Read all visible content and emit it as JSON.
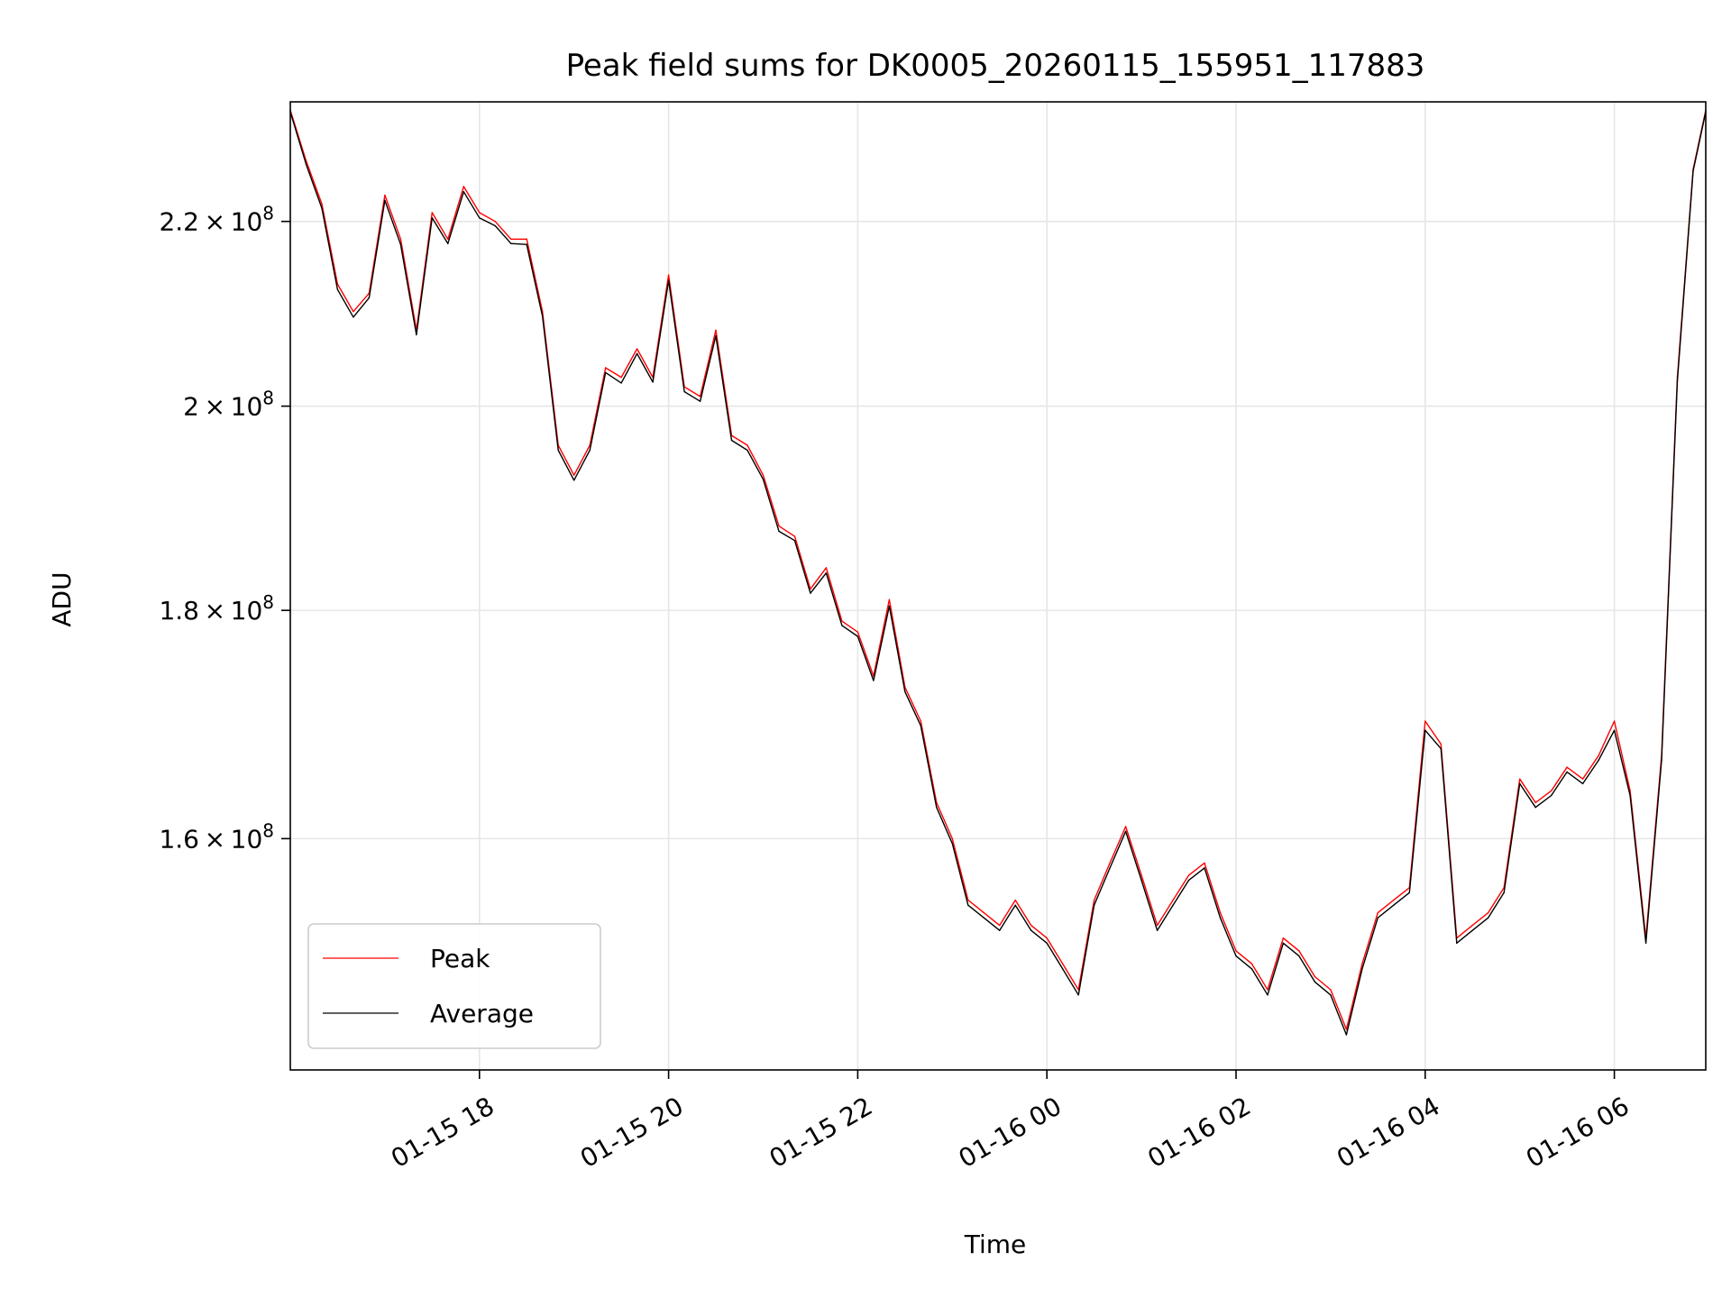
{
  "chart_data": {
    "type": "line",
    "title": "Peak field sums for DK0005_20260115_155951_117883",
    "xlabel": "Time",
    "ylabel": "ADU",
    "y_scale": "log",
    "ylim": [
      142000000,
      234000000
    ],
    "xlim": [
      "2026-01-15 16:00",
      "2026-01-16 06:58"
    ],
    "grid": true,
    "legend_position": "lower-left",
    "x_ticks": [
      {
        "value": "2026-01-15 18:00",
        "label": "01-15 18"
      },
      {
        "value": "2026-01-15 20:00",
        "label": "01-15 20"
      },
      {
        "value": "2026-01-15 22:00",
        "label": "01-15 22"
      },
      {
        "value": "2026-01-16 00:00",
        "label": "01-16 00"
      },
      {
        "value": "2026-01-16 02:00",
        "label": "01-16 02"
      },
      {
        "value": "2026-01-16 04:00",
        "label": "01-16 04"
      },
      {
        "value": "2026-01-16 06:00",
        "label": "01-16 06"
      }
    ],
    "y_ticks": [
      {
        "value": 160000000,
        "mantissa": "1.6",
        "exponent": "8"
      },
      {
        "value": 180000000,
        "mantissa": "1.8",
        "exponent": "8"
      },
      {
        "value": 200000000,
        "mantissa": "2",
        "exponent": "8"
      },
      {
        "value": 220000000,
        "mantissa": "2.2",
        "exponent": "8"
      }
    ],
    "series_colors": {
      "peak": "#ff0000",
      "average": "#000000"
    },
    "series": [
      {
        "name": "Peak",
        "color": "#ff0000",
        "x": [
          "2026-01-15 16:00",
          "2026-01-15 16:10",
          "2026-01-15 16:20",
          "2026-01-15 16:30",
          "2026-01-15 16:40",
          "2026-01-15 16:50",
          "2026-01-15 17:00",
          "2026-01-15 17:10",
          "2026-01-15 17:20",
          "2026-01-15 17:30",
          "2026-01-15 17:40",
          "2026-01-15 17:50",
          "2026-01-15 18:00",
          "2026-01-15 18:10",
          "2026-01-15 18:20",
          "2026-01-15 18:30",
          "2026-01-15 18:40",
          "2026-01-15 18:50",
          "2026-01-15 19:00",
          "2026-01-15 19:10",
          "2026-01-15 19:20",
          "2026-01-15 19:30",
          "2026-01-15 19:40",
          "2026-01-15 19:50",
          "2026-01-15 20:00",
          "2026-01-15 20:10",
          "2026-01-15 20:20",
          "2026-01-15 20:30",
          "2026-01-15 20:40",
          "2026-01-15 20:50",
          "2026-01-15 21:00",
          "2026-01-15 21:10",
          "2026-01-15 21:20",
          "2026-01-15 21:30",
          "2026-01-15 21:40",
          "2026-01-15 21:50",
          "2026-01-15 22:00",
          "2026-01-15 22:10",
          "2026-01-15 22:20",
          "2026-01-15 22:30",
          "2026-01-15 22:40",
          "2026-01-15 22:50",
          "2026-01-15 23:00",
          "2026-01-15 23:10",
          "2026-01-15 23:20",
          "2026-01-15 23:30",
          "2026-01-15 23:40",
          "2026-01-15 23:50",
          "2026-01-16 00:00",
          "2026-01-16 00:10",
          "2026-01-16 00:20",
          "2026-01-16 00:30",
          "2026-01-16 00:40",
          "2026-01-16 00:50",
          "2026-01-16 01:00",
          "2026-01-16 01:10",
          "2026-01-16 01:20",
          "2026-01-16 01:30",
          "2026-01-16 01:40",
          "2026-01-16 01:50",
          "2026-01-16 02:00",
          "2026-01-16 02:10",
          "2026-01-16 02:20",
          "2026-01-16 02:30",
          "2026-01-16 02:40",
          "2026-01-16 02:50",
          "2026-01-16 03:00",
          "2026-01-16 03:10",
          "2026-01-16 03:20",
          "2026-01-16 03:30",
          "2026-01-16 03:40",
          "2026-01-16 03:50",
          "2026-01-16 04:00",
          "2026-01-16 04:10",
          "2026-01-16 04:20",
          "2026-01-16 04:30",
          "2026-01-16 04:40",
          "2026-01-16 04:50",
          "2026-01-16 05:00",
          "2026-01-16 05:10",
          "2026-01-16 05:20",
          "2026-01-16 05:30",
          "2026-01-16 05:40",
          "2026-01-16 05:50",
          "2026-01-16 06:00",
          "2026-01-16 06:10",
          "2026-01-16 06:20",
          "2026-01-16 06:30",
          "2026-01-16 06:40",
          "2026-01-16 06:50",
          "2026-01-16 06:58"
        ],
        "values": [
          233000000,
          227000000,
          222000000,
          213000000,
          210000000,
          212000000,
          223000000,
          218000000,
          208000000,
          221000000,
          218000000,
          224000000,
          221000000,
          220000000,
          218000000,
          218000000,
          210000000,
          196000000,
          193000000,
          196000000,
          204000000,
          203000000,
          206000000,
          203000000,
          214000000,
          202000000,
          201000000,
          208000000,
          197000000,
          196000000,
          193000000,
          188000000,
          187000000,
          182000000,
          184000000,
          179000000,
          178000000,
          174000000,
          181000000,
          173000000,
          170000000,
          163000000,
          160000000,
          155000000,
          154000000,
          153000000,
          155000000,
          153000000,
          152000000,
          150000000,
          148000000,
          155000000,
          158000000,
          161000000,
          157000000,
          153000000,
          155000000,
          157000000,
          158000000,
          154000000,
          151000000,
          150000000,
          148000000,
          152000000,
          151000000,
          149000000,
          148000000,
          145000000,
          150000000,
          154000000,
          155000000,
          156000000,
          170000000,
          168000000,
          152000000,
          153000000,
          154000000,
          156000000,
          165000000,
          163000000,
          164000000,
          166000000,
          165000000,
          167000000,
          170000000,
          164000000,
          152000000,
          167000000,
          203000000,
          226000000,
          233000000
        ]
      },
      {
        "name": "Average",
        "color": "#000000",
        "x": [
          "2026-01-15 16:00",
          "2026-01-15 16:10",
          "2026-01-15 16:20",
          "2026-01-15 16:30",
          "2026-01-15 16:40",
          "2026-01-15 16:50",
          "2026-01-15 17:00",
          "2026-01-15 17:10",
          "2026-01-15 17:20",
          "2026-01-15 17:30",
          "2026-01-15 17:40",
          "2026-01-15 17:50",
          "2026-01-15 18:00",
          "2026-01-15 18:10",
          "2026-01-15 18:20",
          "2026-01-15 18:30",
          "2026-01-15 18:40",
          "2026-01-15 18:50",
          "2026-01-15 19:00",
          "2026-01-15 19:10",
          "2026-01-15 19:20",
          "2026-01-15 19:30",
          "2026-01-15 19:40",
          "2026-01-15 19:50",
          "2026-01-15 20:00",
          "2026-01-15 20:10",
          "2026-01-15 20:20",
          "2026-01-15 20:30",
          "2026-01-15 20:40",
          "2026-01-15 20:50",
          "2026-01-15 21:00",
          "2026-01-15 21:10",
          "2026-01-15 21:20",
          "2026-01-15 21:30",
          "2026-01-15 21:40",
          "2026-01-15 21:50",
          "2026-01-15 22:00",
          "2026-01-15 22:10",
          "2026-01-15 22:20",
          "2026-01-15 22:30",
          "2026-01-15 22:40",
          "2026-01-15 22:50",
          "2026-01-15 23:00",
          "2026-01-15 23:10",
          "2026-01-15 23:20",
          "2026-01-15 23:30",
          "2026-01-15 23:40",
          "2026-01-15 23:50",
          "2026-01-16 00:00",
          "2026-01-16 00:10",
          "2026-01-16 00:20",
          "2026-01-16 00:30",
          "2026-01-16 00:40",
          "2026-01-16 00:50",
          "2026-01-16 01:00",
          "2026-01-16 01:10",
          "2026-01-16 01:20",
          "2026-01-16 01:30",
          "2026-01-16 01:40",
          "2026-01-16 01:50",
          "2026-01-16 02:00",
          "2026-01-16 02:10",
          "2026-01-16 02:20",
          "2026-01-16 02:30",
          "2026-01-16 02:40",
          "2026-01-16 02:50",
          "2026-01-16 03:00",
          "2026-01-16 03:10",
          "2026-01-16 03:20",
          "2026-01-16 03:30",
          "2026-01-16 03:40",
          "2026-01-16 03:50",
          "2026-01-16 04:00",
          "2026-01-16 04:10",
          "2026-01-16 04:20",
          "2026-01-16 04:30",
          "2026-01-16 04:40",
          "2026-01-16 04:50",
          "2026-01-16 05:00",
          "2026-01-16 05:10",
          "2026-01-16 05:20",
          "2026-01-16 05:30",
          "2026-01-16 05:40",
          "2026-01-16 05:50",
          "2026-01-16 06:00",
          "2026-01-16 06:10",
          "2026-01-16 06:20",
          "2026-01-16 06:30",
          "2026-01-16 06:40",
          "2026-01-16 06:50",
          "2026-01-16 06:58"
        ],
        "values": [
          232800000,
          226600000,
          221500000,
          212400000,
          209400000,
          211500000,
          222400000,
          217400000,
          207500000,
          220400000,
          217500000,
          223400000,
          220400000,
          219500000,
          217500000,
          217400000,
          209500000,
          195500000,
          192500000,
          195500000,
          203500000,
          202400000,
          205500000,
          202500000,
          213400000,
          201500000,
          200500000,
          207400000,
          196500000,
          195500000,
          192600000,
          187500000,
          186600000,
          181600000,
          183500000,
          178600000,
          177600000,
          173600000,
          180400000,
          172600000,
          169600000,
          162600000,
          159600000,
          154600000,
          153600000,
          152600000,
          154600000,
          152600000,
          151600000,
          149600000,
          147600000,
          154600000,
          157600000,
          160600000,
          156600000,
          152600000,
          154600000,
          156600000,
          157600000,
          153600000,
          150600000,
          149600000,
          147600000,
          151600000,
          150600000,
          148600000,
          147600000,
          144600000,
          149600000,
          153600000,
          154600000,
          155600000,
          169200000,
          167600000,
          151600000,
          152600000,
          153600000,
          155600000,
          164600000,
          162600000,
          163600000,
          165600000,
          164600000,
          166600000,
          169200000,
          163600000,
          151600000,
          166600000,
          202600000,
          225800000,
          232800000
        ]
      }
    ]
  }
}
